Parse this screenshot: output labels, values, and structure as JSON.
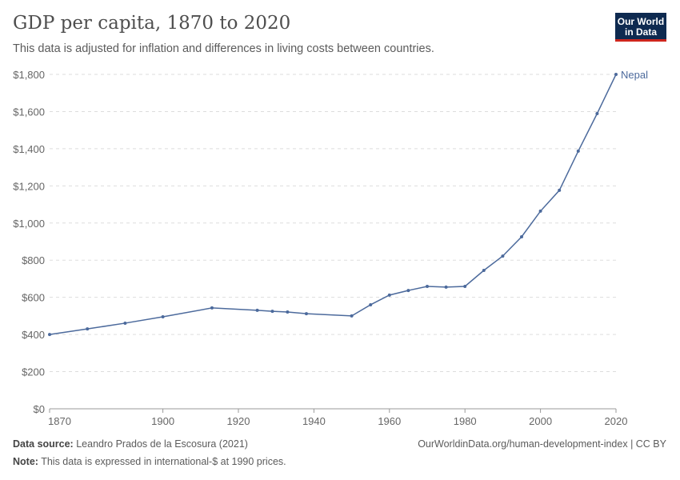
{
  "header": {
    "title": "GDP per capita, 1870 to 2020",
    "subtitle": "This data is adjusted for inflation and differences in living costs between countries.",
    "logo_text": "Our World in Data"
  },
  "footer": {
    "source_label": "Data source:",
    "source": "Leandro Prados de la Escosura (2021)",
    "url": "OurWorldinData.org/human-development-index | CC BY",
    "note_label": "Note:",
    "note": "This data is expressed in international-$ at 1990 prices."
  },
  "chart_data": {
    "type": "line",
    "title": "GDP per capita, 1870 to 2020",
    "xlim": [
      1870,
      2020
    ],
    "ylim": [
      0,
      1800
    ],
    "xticks": [
      1870,
      1900,
      1920,
      1940,
      1960,
      1980,
      2000,
      2020
    ],
    "yticks": [
      0,
      200,
      400,
      600,
      800,
      1000,
      1200,
      1400,
      1600,
      1800
    ],
    "ytick_labels": [
      "$0",
      "$200",
      "$400",
      "$600",
      "$800",
      "$1,000",
      "$1,200",
      "$1,400",
      "$1,600",
      "$1,800"
    ],
    "grid": "horizontal dashed",
    "color": "#4c6a9c",
    "series": [
      {
        "name": "Nepal",
        "x": [
          1870,
          1880,
          1890,
          1900,
          1913,
          1925,
          1929,
          1933,
          1938,
          1950,
          1955,
          1960,
          1965,
          1970,
          1975,
          1980,
          1985,
          1990,
          1995,
          2000,
          2005,
          2010,
          2015,
          2020
        ],
        "y": [
          400,
          430,
          461,
          495,
          543,
          530,
          525,
          521,
          512,
          500,
          560,
          612,
          637,
          659,
          655,
          659,
          745,
          822,
          926,
          1064,
          1176,
          1387,
          1589,
          1800
        ]
      }
    ]
  }
}
